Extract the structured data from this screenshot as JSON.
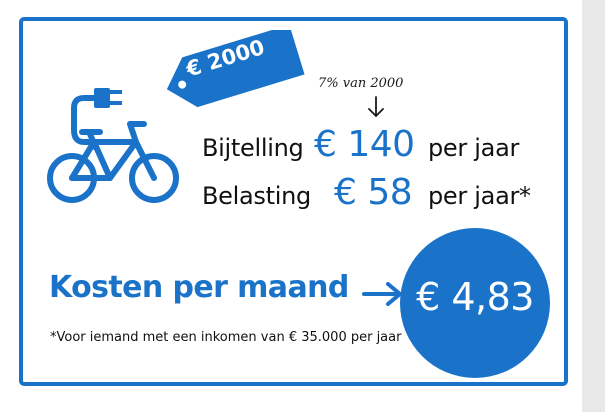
{
  "price_tag": {
    "label": "€ 2000"
  },
  "note": {
    "text": "7% van 2000"
  },
  "rows": [
    {
      "label": "Bijtelling",
      "amount": "€ 140",
      "suffix": "per jaar"
    },
    {
      "label": "Belasting",
      "amount": "€ 58",
      "suffix": "per jaar*"
    }
  ],
  "total": {
    "label": "Kosten per maand",
    "amount": "€ 4,83"
  },
  "footnote": "*Voor iemand met een inkomen van € 35.000 per jaar",
  "colors": {
    "accent": "#1a73c8",
    "text": "#111111",
    "background": "#ffffff"
  },
  "icons": [
    "electric-bike-icon",
    "plug-icon",
    "price-tag-icon",
    "arrow-down-icon",
    "arrow-right-icon"
  ]
}
